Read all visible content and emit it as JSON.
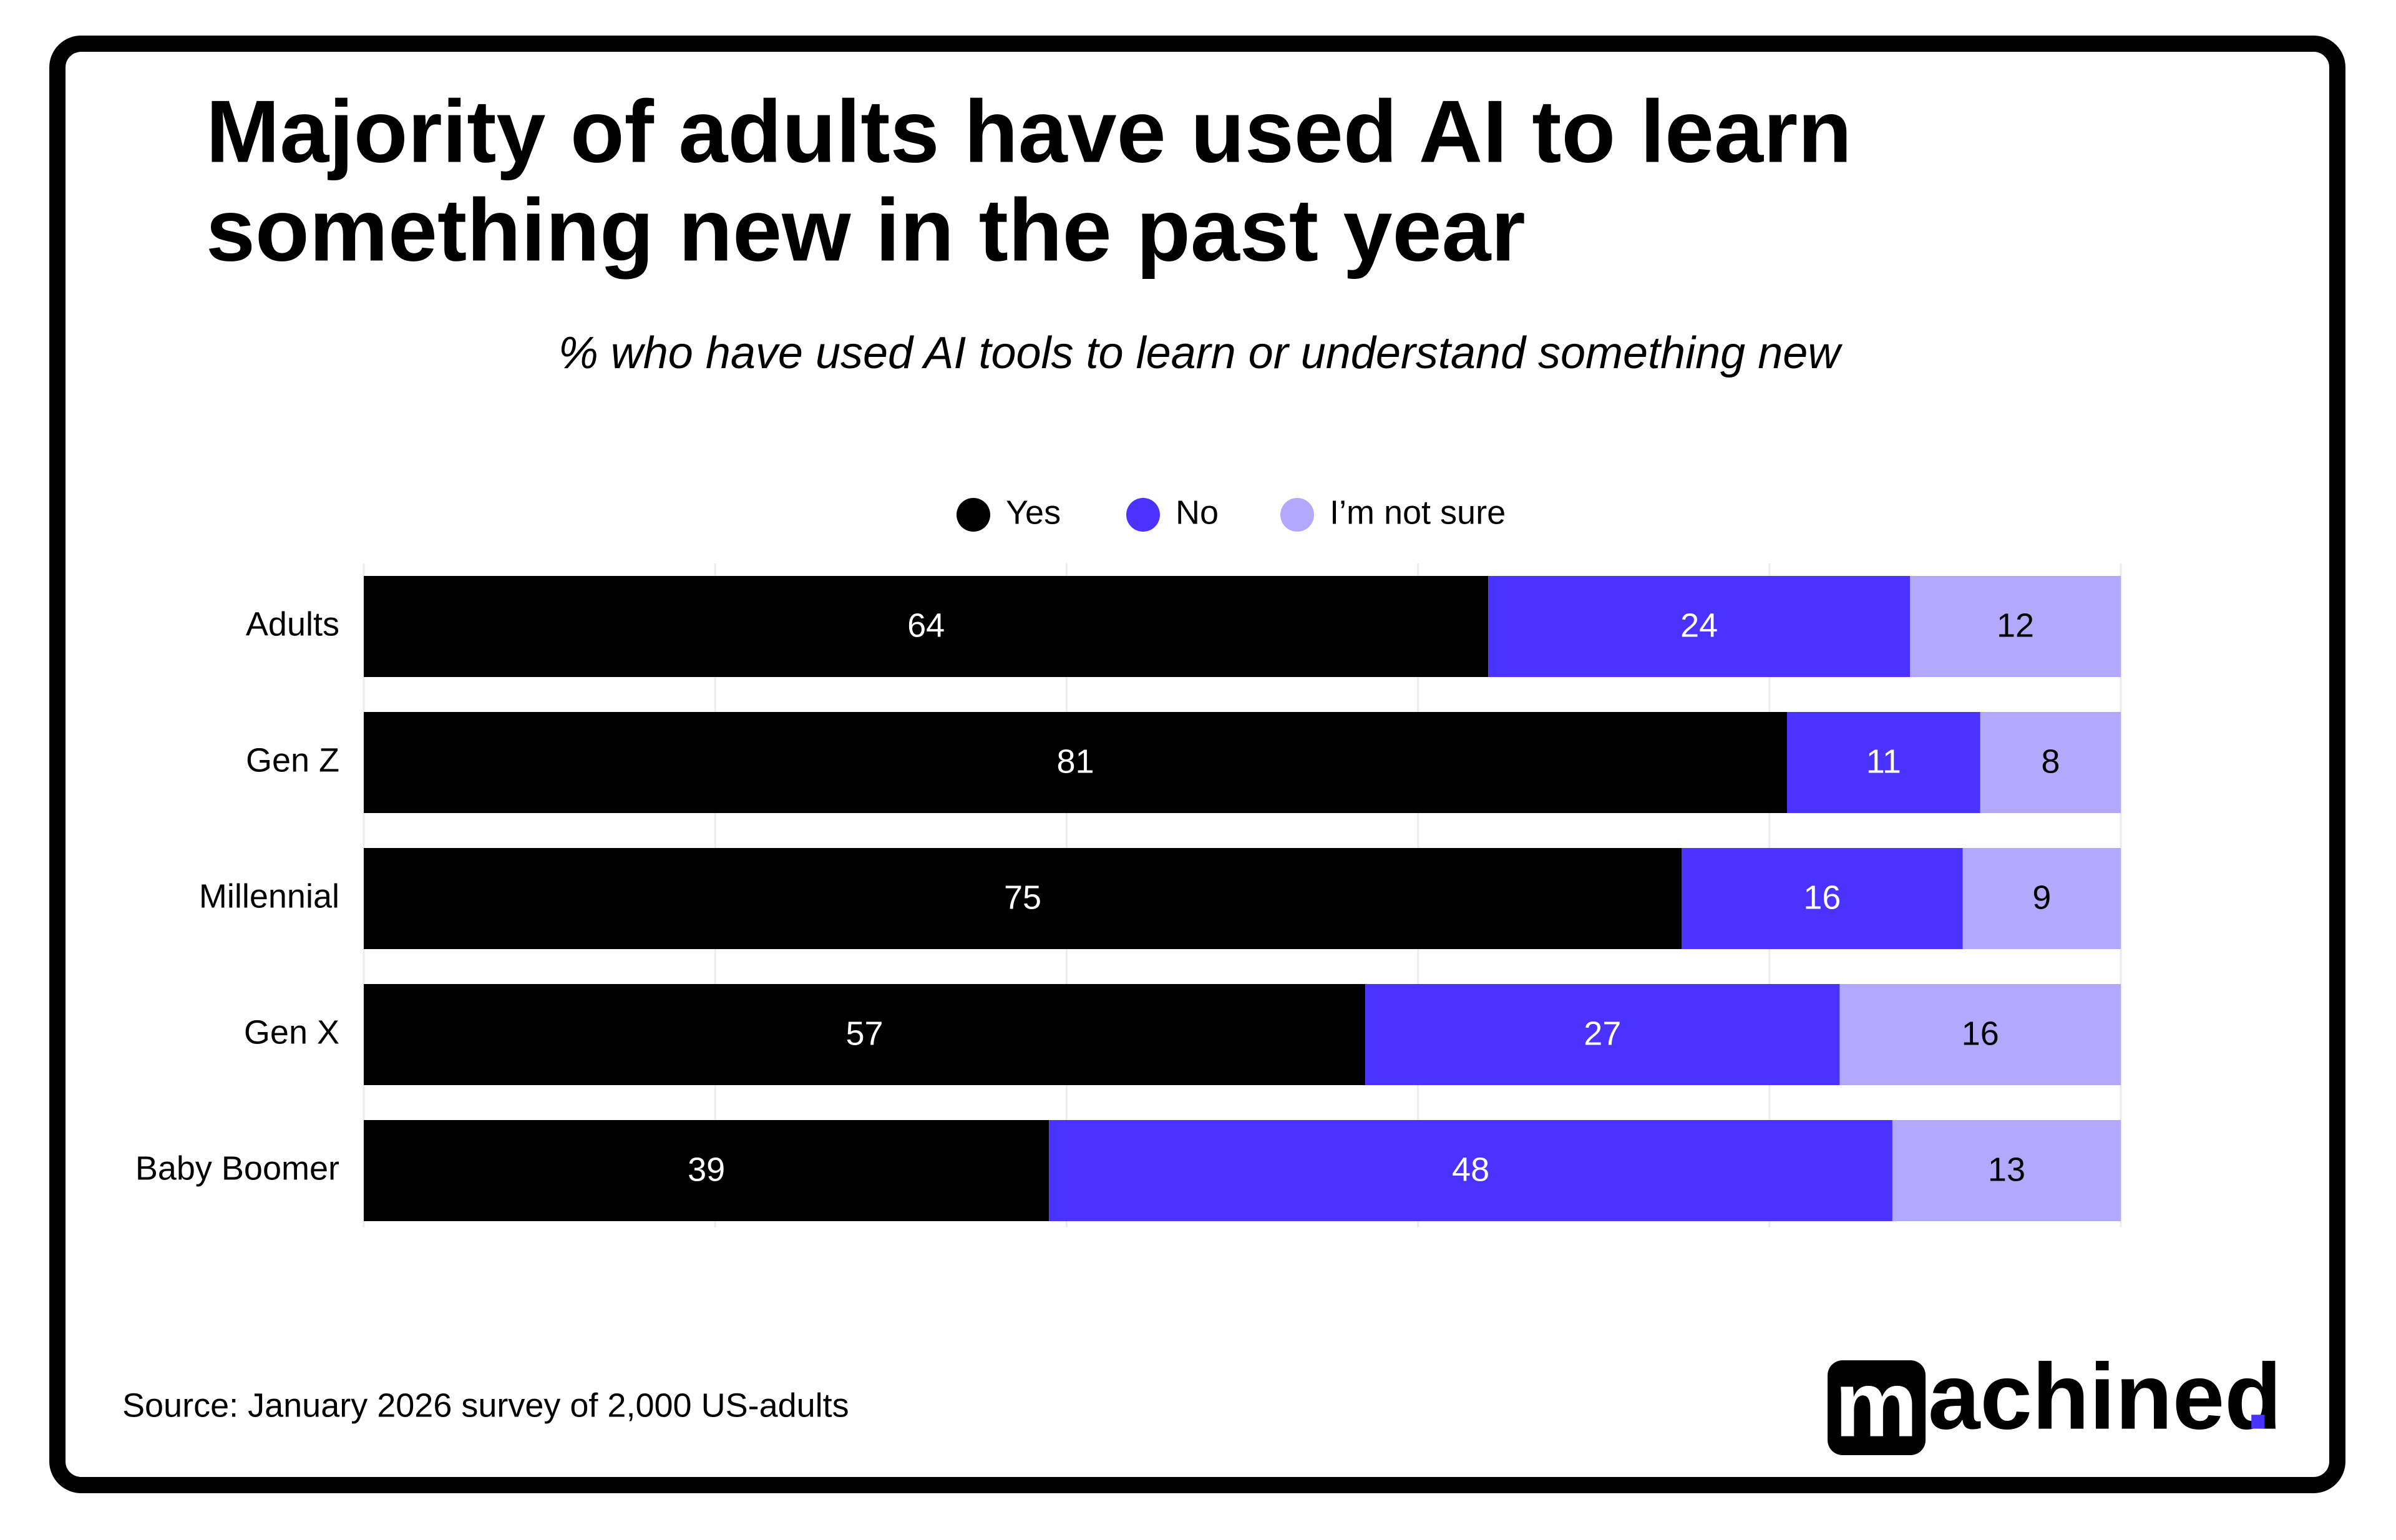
{
  "chart_data": {
    "type": "stacked_bar_horizontal",
    "title": [
      "Majority of adults have used AI to learn",
      "something new in the past year"
    ],
    "subtitle": "% who have used AI tools to learn or understand something new",
    "categories": [
      "Adults",
      "Gen Z",
      "Millennial",
      "Gen X",
      "Baby Boomer"
    ],
    "series": [
      {
        "name": "Yes",
        "color": "#000000",
        "label_color": "#ffffff",
        "values": [
          64,
          81,
          75,
          57,
          39
        ]
      },
      {
        "name": "No",
        "color": "#4b33ff",
        "label_color": "#ffffff",
        "values": [
          24,
          11,
          16,
          27,
          48
        ]
      },
      {
        "name": "I’m not sure",
        "color": "#b3a9fc",
        "label_color": "#000000",
        "values": [
          12,
          8,
          9,
          16,
          13
        ]
      }
    ],
    "xlim": [
      0,
      100
    ],
    "xticks": [
      0,
      20,
      40,
      60,
      80,
      100
    ],
    "grid": true,
    "legend": "top",
    "source": "Source:  January 2026 survey of 2,000 US-adults",
    "logo": {
      "mark": "m",
      "text": "achined",
      "dot": "."
    }
  }
}
